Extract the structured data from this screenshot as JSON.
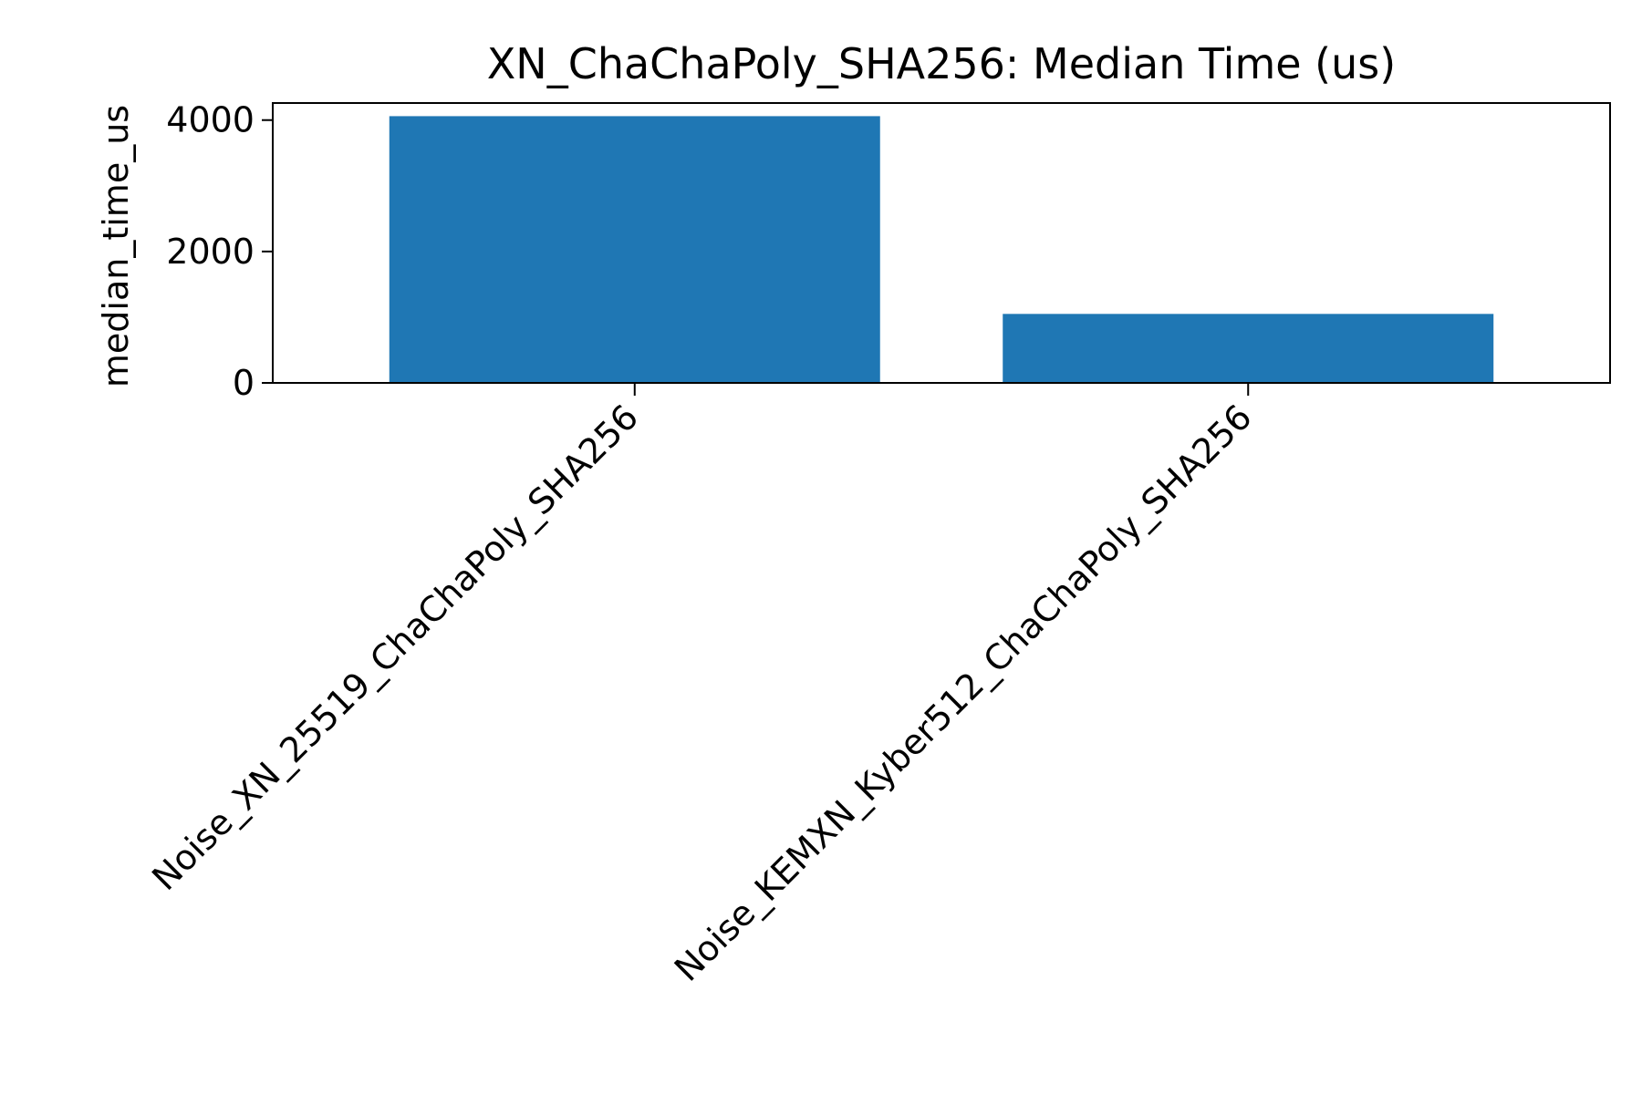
{
  "chart_data": {
    "type": "bar",
    "title": "XN_ChaChaPoly_SHA256: Median Time (us)",
    "xlabel": "",
    "ylabel": "median_time_us",
    "categories": [
      "Noise_XN_25519_ChaChaPoly_SHA256",
      "Noise_KEMXN_Kyber512_ChaChaPoly_SHA256"
    ],
    "values": [
      4060,
      1050
    ],
    "ylim": [
      0,
      4260
    ],
    "yticks": [
      0,
      2000,
      4000
    ],
    "ytick_labels": [
      "0",
      "2000",
      "4000"
    ],
    "grid": false,
    "bar_color": "#1f77b4"
  }
}
